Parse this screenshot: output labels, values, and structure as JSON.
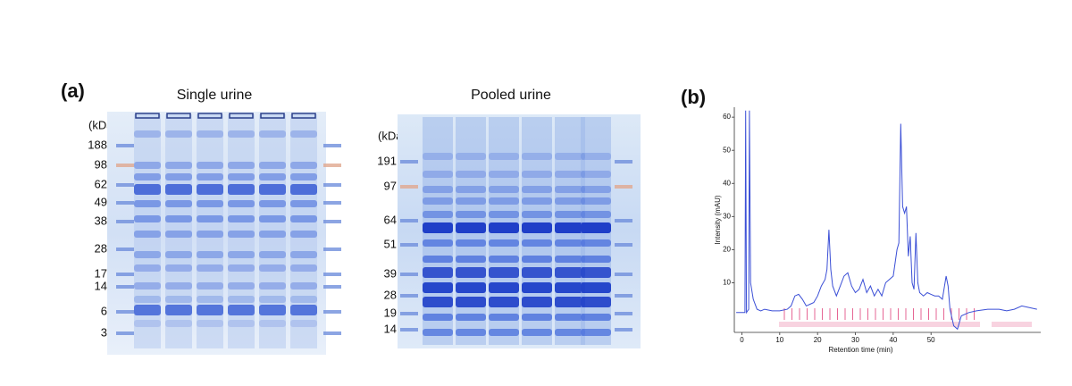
{
  "panel_a": {
    "label": "(a)",
    "gels": [
      {
        "title": "Single urine",
        "unit": "(kDa)",
        "markers": [
          188,
          98,
          62,
          49,
          38,
          28,
          17,
          14,
          6,
          3
        ]
      },
      {
        "title": "Pooled urine",
        "unit": "(kDa)",
        "markers": [
          191,
          97,
          64,
          51,
          39,
          28,
          19,
          14
        ]
      }
    ]
  },
  "panel_b": {
    "label": "(b)"
  },
  "chart_data": {
    "type": "line",
    "x_label": "Retention time (min)",
    "y_label": "Intensity (mAU)",
    "x": [
      -1.5,
      0,
      0.8,
      1,
      1.2,
      1.8,
      2,
      2.3,
      3,
      4,
      5,
      6,
      8,
      10,
      12,
      13,
      14,
      15,
      16,
      17,
      18,
      19,
      20,
      21,
      22,
      22.5,
      23,
      23.5,
      24,
      25,
      26,
      27,
      28,
      29,
      30,
      31,
      32,
      33,
      34,
      35,
      36,
      37,
      38,
      39,
      40,
      41,
      41.5,
      42,
      42.5,
      43,
      43.5,
      44,
      44.5,
      45,
      45.5,
      46,
      46.5,
      47,
      48,
      49,
      50,
      51,
      52,
      53,
      54,
      54.5,
      55,
      56,
      57,
      58,
      60,
      62,
      65,
      68,
      70,
      72,
      74,
      76,
      78
    ],
    "values": [
      1,
      1,
      1,
      62,
      1,
      2,
      62,
      10,
      5,
      2,
      1.5,
      2,
      1.5,
      1.5,
      2,
      3,
      6,
      6.5,
      5,
      3,
      3.5,
      4,
      6,
      9,
      11,
      14,
      26,
      14,
      9,
      6,
      9,
      12,
      13,
      9,
      7,
      8,
      11,
      7,
      9,
      6,
      8,
      6,
      10,
      11,
      12,
      20,
      22,
      58,
      33,
      31,
      33,
      18,
      24,
      10,
      8,
      25,
      10,
      7,
      6,
      7,
      6.5,
      6,
      6,
      5,
      12,
      9,
      2,
      -3,
      -4,
      0,
      1,
      1.5,
      2,
      2,
      1.5,
      2,
      3,
      2.5,
      2
    ],
    "color": "#3b4fd6",
    "xlim": [
      -2,
      79
    ],
    "ylim": [
      -5,
      63
    ],
    "xticks": [
      0,
      10,
      20,
      30,
      40,
      50
    ],
    "yticks": [
      10,
      20,
      30,
      40,
      50,
      60
    ],
    "grid": false
  }
}
